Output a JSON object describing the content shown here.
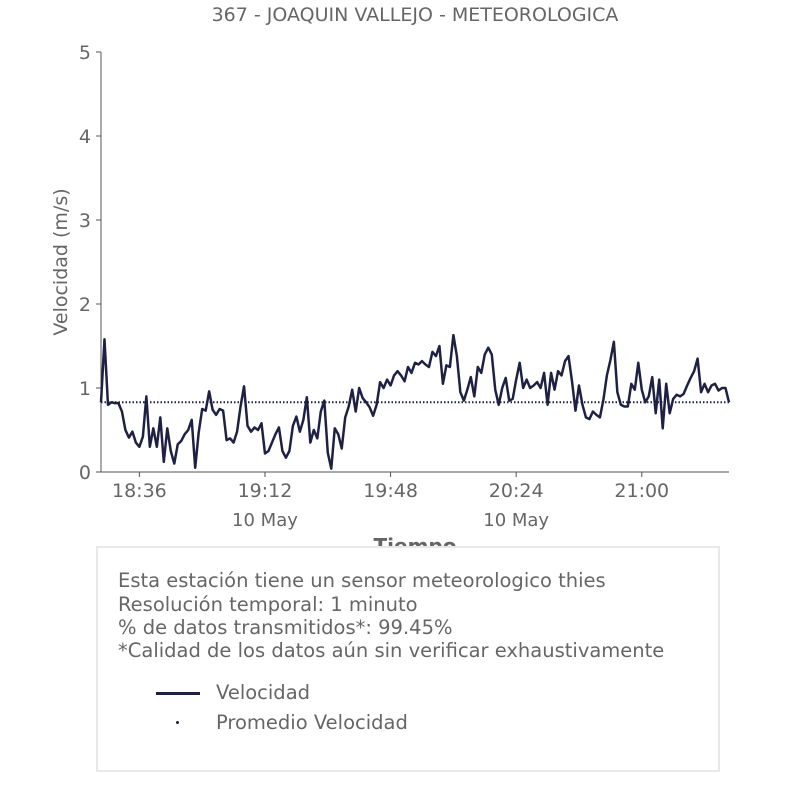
{
  "chart_data": {
    "type": "line",
    "title": "367 - JOAQUIN VALLEJO - METEOROLOGICA",
    "xlabel": "Tiempo",
    "ylabel": "Velocidad (m/s)",
    "ylim": [
      0,
      5
    ],
    "yticks": [
      "0",
      "1",
      "2",
      "3",
      "4",
      "5"
    ],
    "xticks": [
      {
        "time": "18:36",
        "date": ""
      },
      {
        "time": "19:12",
        "date": "10 May"
      },
      {
        "time": "19:48",
        "date": ""
      },
      {
        "time": "20:24",
        "date": "10 May"
      },
      {
        "time": "21:00",
        "date": ""
      }
    ],
    "x_start": "18:25",
    "x_end": "21:25",
    "series": [
      {
        "name": "Velocidad",
        "color": "#1f2144",
        "start": "18:25",
        "interval_minutes": 1,
        "values": [
          0.83,
          1.58,
          0.8,
          0.83,
          0.82,
          0.82,
          0.72,
          0.5,
          0.41,
          0.48,
          0.35,
          0.3,
          0.42,
          0.9,
          0.3,
          0.52,
          0.3,
          0.65,
          0.12,
          0.52,
          0.25,
          0.1,
          0.33,
          0.37,
          0.45,
          0.5,
          0.62,
          0.05,
          0.47,
          0.75,
          0.73,
          0.96,
          0.74,
          0.68,
          0.75,
          0.73,
          0.38,
          0.4,
          0.35,
          0.48,
          0.78,
          1.02,
          0.55,
          0.48,
          0.53,
          0.5,
          0.58,
          0.22,
          0.25,
          0.35,
          0.45,
          0.53,
          0.25,
          0.17,
          0.25,
          0.55,
          0.66,
          0.48,
          0.62,
          0.89,
          0.35,
          0.5,
          0.4,
          0.72,
          0.85,
          0.23,
          0.04,
          0.52,
          0.45,
          0.28,
          0.65,
          0.78,
          0.98,
          0.72,
          1.0,
          0.88,
          0.83,
          0.77,
          0.67,
          0.8,
          1.07,
          1.0,
          1.1,
          1.03,
          1.15,
          1.2,
          1.15,
          1.08,
          1.25,
          1.18,
          1.3,
          1.28,
          1.32,
          1.28,
          1.25,
          1.43,
          1.38,
          1.5,
          1.05,
          1.27,
          1.25,
          1.63,
          1.38,
          0.95,
          0.85,
          0.98,
          1.13,
          0.9,
          1.25,
          1.18,
          1.4,
          1.48,
          1.4,
          0.98,
          0.8,
          1.0,
          1.12,
          0.85,
          0.87,
          1.1,
          1.3,
          1.0,
          1.1,
          1.0,
          1.03,
          1.07,
          1.0,
          1.18,
          0.8,
          1.18,
          0.98,
          1.2,
          1.15,
          1.32,
          1.38,
          1.08,
          0.73,
          1.03,
          0.8,
          0.65,
          0.63,
          0.72,
          0.68,
          0.65,
          0.86,
          1.15,
          1.33,
          1.55,
          0.95,
          0.8,
          0.78,
          0.78,
          1.05,
          0.98,
          1.3,
          0.98,
          0.83,
          0.9,
          1.13,
          0.7,
          1.1,
          0.52,
          1.05,
          0.7,
          0.87,
          0.92,
          0.9,
          0.93,
          1.03,
          1.12,
          1.2,
          1.35,
          0.95,
          1.05,
          0.95,
          1.03,
          1.05,
          0.97,
          1.0,
          1.0,
          0.83
        ]
      },
      {
        "name": "Promedio Velocidad",
        "color": "#1f2144",
        "style": "dotted",
        "value": 0.83
      }
    ],
    "grid": false,
    "legend": "bottom"
  },
  "info": {
    "line1": "Esta estación tiene un sensor meteorologico thies",
    "line2": "Resolución temporal: 1 minuto",
    "line3": "% de datos transmitidos*: 99.45%",
    "line4": "*Calidad de los datos aún sin verificar exhaustivamente"
  },
  "legend": {
    "velocidad": "Velocidad",
    "promedio": "Promedio Velocidad"
  }
}
